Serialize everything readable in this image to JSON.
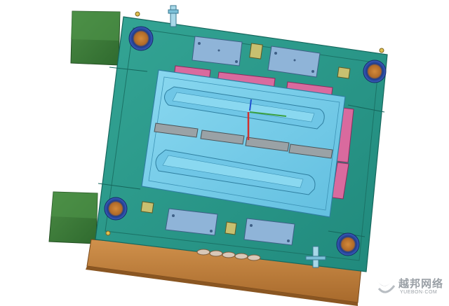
{
  "scene": {
    "subject": "injection-mold-assembly-render",
    "colors": {
      "background": "#ffffff",
      "base_plate": "#2b9d8e",
      "side_block": "#3c7a3a",
      "cavity_insert": "#7cd0ec",
      "lifter_pad": "#d96a9e",
      "top_pad": "#8fb4d8",
      "bottom_plate": "#c9853d",
      "bolt_ring": "#2c4fa8"
    }
  },
  "watermark": {
    "cn_text": "越邦网络",
    "en_text": "YUEBON·COM",
    "color": "#9aa0a6"
  }
}
